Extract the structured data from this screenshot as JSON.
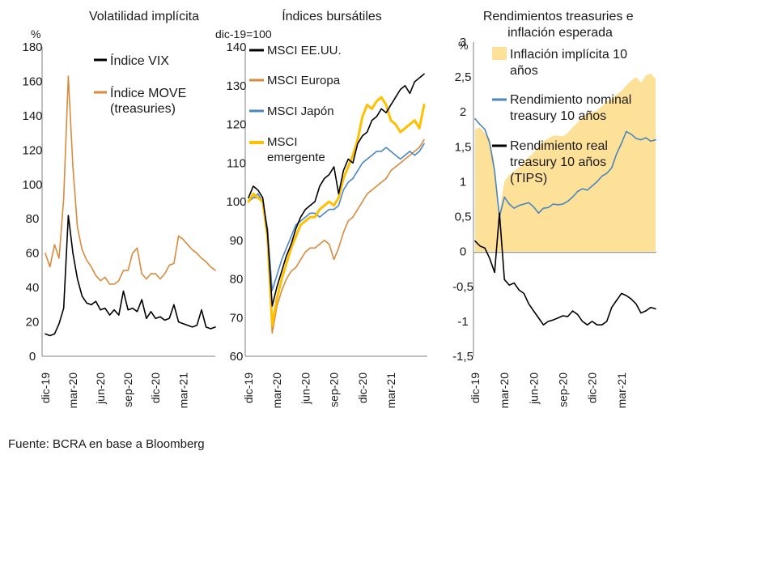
{
  "source": "Fuente: BCRA en base a Bloomberg",
  "colors": {
    "vix": "#000000",
    "move": "#d98a3c",
    "msci_us": "#000000",
    "msci_eu": "#d98a3c",
    "msci_jp": "#4a86c0",
    "msci_em": "#ffc000",
    "breakeven": "#fde199",
    "nominal": "#4a86c0",
    "real": "#000000",
    "axis": "#7f7f7f"
  },
  "chart_data": [
    {
      "type": "line",
      "title": "Volatilidad implícita",
      "ylabel": "%",
      "ylim": [
        0,
        180
      ],
      "yticks": [
        0,
        20,
        40,
        60,
        80,
        100,
        120,
        140,
        160,
        180
      ],
      "ytick_labels": [
        "0",
        "20",
        "40",
        "60",
        "80",
        "100",
        "120",
        "140",
        "160",
        "180"
      ],
      "x": [
        0,
        0.5,
        1,
        1.5,
        2,
        2.5,
        3,
        3.5,
        4,
        4.5,
        5,
        5.5,
        6,
        6.5,
        7,
        7.5,
        8,
        8.5,
        9,
        9.5,
        10,
        10.5,
        11,
        11.5,
        12,
        12.5,
        13,
        13.5,
        14,
        14.5,
        15,
        15.5,
        16,
        16.5,
        17,
        17.5,
        18,
        18.5
      ],
      "xticks": [
        0,
        3,
        6,
        9,
        12,
        15
      ],
      "xtick_labels": [
        "dic-19",
        "mar-20",
        "jun-20",
        "sep-20",
        "dic-20",
        "mar-21"
      ],
      "series": [
        {
          "name": "Índice VIX",
          "values": [
            13,
            12,
            13,
            19,
            28,
            82,
            60,
            45,
            35,
            31,
            30,
            32,
            27,
            28,
            24,
            27,
            24,
            38,
            27,
            28,
            26,
            33,
            22,
            26,
            22,
            23,
            21,
            22,
            30,
            20,
            19,
            18,
            17,
            18,
            27,
            17,
            16,
            17
          ]
        },
        {
          "name": "Índice MOVE (treasuries)",
          "values": [
            60,
            52,
            65,
            57,
            92,
            163,
            110,
            75,
            62,
            56,
            52,
            47,
            44,
            46,
            42,
            42,
            44,
            50,
            50,
            60,
            63,
            48,
            45,
            48,
            48,
            45,
            48,
            53,
            54,
            70,
            68,
            65,
            62,
            60,
            57,
            55,
            52,
            50
          ]
        }
      ]
    },
    {
      "type": "line",
      "title": "Índices bursátiles",
      "ylabel": "dic-19=100",
      "ylim": [
        60,
        140
      ],
      "yticks": [
        60,
        70,
        80,
        90,
        100,
        110,
        120,
        130,
        140
      ],
      "ytick_labels": [
        "60",
        "70",
        "80",
        "90",
        "100",
        "110",
        "120",
        "130",
        "140"
      ],
      "x": [
        0,
        0.5,
        1,
        1.5,
        2,
        2.5,
        3,
        3.5,
        4,
        4.5,
        5,
        5.5,
        6,
        6.5,
        7,
        7.5,
        8,
        8.5,
        9,
        9.5,
        10,
        10.5,
        11,
        11.5,
        12,
        12.5,
        13,
        13.5,
        14,
        14.5,
        15,
        15.5,
        16,
        16.5,
        17,
        17.5,
        18,
        18.5
      ],
      "xticks": [
        0,
        3,
        6,
        9,
        12,
        15
      ],
      "xtick_labels": [
        "dic-19",
        "mar-20",
        "jun-20",
        "sep-20",
        "dic-20",
        "mar-21"
      ],
      "series": [
        {
          "name": "MSCI EE.UU.",
          "values": [
            101,
            104,
            103,
            101,
            92,
            73,
            78,
            82,
            86,
            89,
            93,
            96,
            98,
            99,
            100,
            104,
            106,
            107,
            109,
            102,
            108,
            111,
            110,
            115,
            117,
            118,
            121,
            122,
            124,
            123,
            125,
            127,
            129,
            130,
            128,
            131,
            132,
            133
          ]
        },
        {
          "name": "MSCI Europa",
          "values": [
            100,
            101,
            101,
            100,
            93,
            66,
            73,
            77,
            80,
            82,
            83,
            85,
            87,
            88,
            88,
            89,
            90,
            89,
            85,
            88,
            92,
            95,
            96,
            98,
            100,
            102,
            103,
            104,
            105,
            106,
            108,
            109,
            110,
            111,
            112,
            113,
            114,
            116
          ]
        },
        {
          "name": "MSCI Japón",
          "values": [
            100,
            101,
            102,
            100,
            93,
            77,
            81,
            85,
            88,
            91,
            94,
            95,
            96,
            97,
            97,
            96,
            97,
            98,
            98,
            99,
            103,
            105,
            106,
            108,
            110,
            111,
            112,
            113,
            113,
            114,
            113,
            112,
            111,
            112,
            113,
            112,
            113,
            115
          ]
        },
        {
          "name": "MSCI emergente",
          "values": [
            100,
            102,
            101,
            100,
            91,
            68,
            75,
            80,
            84,
            88,
            91,
            94,
            95,
            96,
            96,
            98,
            99,
            100,
            99,
            101,
            106,
            109,
            112,
            116,
            122,
            125,
            124,
            126,
            127,
            125,
            121,
            120,
            118,
            119,
            120,
            121,
            119,
            125
          ]
        }
      ]
    },
    {
      "type": "area",
      "title": "Rendimientos treasuries e inflación esperada",
      "ylabel": "%",
      "ylim": [
        -1.5,
        3
      ],
      "yticks": [
        -1.5,
        -1,
        -0.5,
        0,
        0.5,
        1,
        1.5,
        2,
        2.5,
        3
      ],
      "ytick_labels": [
        "-1,5",
        "-1",
        "-0,5",
        "0",
        "0,5",
        "1",
        "1,5",
        "2",
        "2,5",
        "3"
      ],
      "x": [
        0,
        0.5,
        1,
        1.5,
        2,
        2.5,
        3,
        3.5,
        4,
        4.5,
        5,
        5.5,
        6,
        6.5,
        7,
        7.5,
        8,
        8.5,
        9,
        9.5,
        10,
        10.5,
        11,
        11.5,
        12,
        12.5,
        13,
        13.5,
        14,
        14.5,
        15,
        15.5,
        16,
        16.5,
        17,
        17.5,
        18,
        18.5
      ],
      "xticks": [
        0,
        3,
        6,
        9,
        12,
        15
      ],
      "xtick_labels": [
        "dic-19",
        "mar-20",
        "jun-20",
        "sep-20",
        "dic-20",
        "mar-21"
      ],
      "series": [
        {
          "name": "Inflación implícita 10 años",
          "kind": "area",
          "values": [
            1.75,
            1.78,
            1.7,
            1.62,
            1.25,
            0.58,
            1.0,
            1.1,
            1.15,
            1.2,
            1.28,
            1.35,
            1.42,
            1.5,
            1.58,
            1.62,
            1.66,
            1.66,
            1.65,
            1.7,
            1.78,
            1.85,
            1.92,
            1.98,
            2.0,
            2.02,
            2.08,
            2.15,
            2.18,
            2.25,
            2.3,
            2.38,
            2.45,
            2.5,
            2.42,
            2.52,
            2.55,
            2.47
          ]
        },
        {
          "name": "Rendimiento nominal treasury 10 años",
          "kind": "line",
          "values": [
            1.9,
            1.82,
            1.75,
            1.55,
            1.15,
            0.5,
            0.78,
            0.68,
            0.62,
            0.66,
            0.68,
            0.7,
            0.64,
            0.55,
            0.62,
            0.63,
            0.68,
            0.67,
            0.68,
            0.72,
            0.78,
            0.86,
            0.9,
            0.88,
            0.94,
            1.0,
            1.08,
            1.12,
            1.2,
            1.4,
            1.55,
            1.72,
            1.68,
            1.62,
            1.6,
            1.63,
            1.58,
            1.6
          ]
        },
        {
          "name": "Rendimiento real treasury 10 años (TIPS)",
          "kind": "line",
          "values": [
            0.15,
            0.08,
            0.05,
            -0.1,
            -0.3,
            0.55,
            -0.4,
            -0.48,
            -0.45,
            -0.55,
            -0.6,
            -0.75,
            -0.85,
            -0.95,
            -1.05,
            -1.0,
            -0.98,
            -0.95,
            -0.92,
            -0.93,
            -0.85,
            -0.9,
            -1.0,
            -1.05,
            -1.0,
            -1.05,
            -1.05,
            -1.0,
            -0.8,
            -0.7,
            -0.6,
            -0.63,
            -0.68,
            -0.75,
            -0.88,
            -0.85,
            -0.8,
            -0.82
          ]
        }
      ]
    }
  ]
}
